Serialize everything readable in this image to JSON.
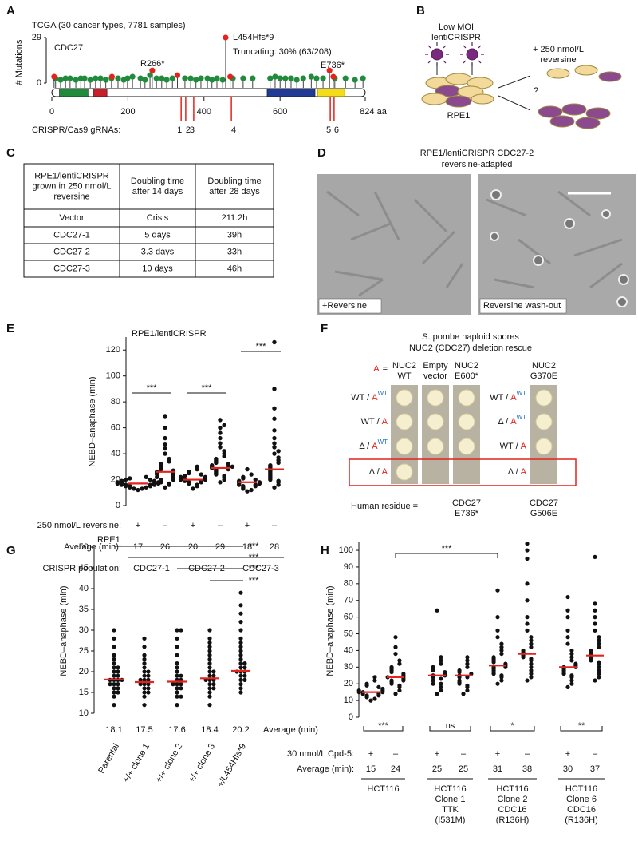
{
  "panels": {
    "A": {
      "letter": "A",
      "title": "TCGA (30 cancer types, 7781 samples)",
      "gene": "CDC27",
      "y_label": "# Mutations",
      "ylim": [
        0,
        29
      ],
      "yticks": [
        0,
        29
      ],
      "xlim": [
        0,
        824
      ],
      "xticks": [
        0,
        200,
        400,
        600,
        {
          "value": 824,
          "label": "824 aa"
        }
      ],
      "series": [
        {
          "color": "#1f8b3b",
          "x": [
            10,
            23,
            36,
            48,
            63,
            76,
            86,
            101,
            115,
            128,
            142,
            157,
            174,
            189,
            199,
            212,
            233,
            245,
            258,
            275,
            289,
            302,
            317,
            350,
            365,
            379,
            392,
            409,
            421,
            434,
            449,
            476,
            503,
            528,
            574,
            587,
            600,
            614,
            629,
            644,
            661,
            682,
            696,
            713,
            744,
            772,
            797,
            818
          ],
          "values": [
            3,
            2,
            3,
            3,
            2,
            3,
            3,
            2,
            3,
            3,
            2,
            3,
            3,
            2,
            3,
            4,
            3,
            2,
            5,
            3,
            3,
            2,
            3,
            3,
            3,
            2,
            3,
            3,
            2,
            3,
            2,
            3,
            3,
            3,
            3,
            4,
            3,
            3,
            3,
            2,
            3,
            4,
            3,
            3,
            3,
            3,
            2,
            3
          ]
        },
        {
          "color": "#e3231c",
          "x": [
            6,
            158,
            264,
            330,
            457,
            469,
            730,
            740
          ],
          "values": [
            4,
            4,
            8,
            5,
            29,
            4,
            8,
            4
          ]
        }
      ],
      "domains": [
        {
          "color": "#1f8b3b",
          "start": 20,
          "end": 95
        },
        {
          "color": "#c8202a",
          "start": 110,
          "end": 145
        },
        {
          "color": "#1f3b96",
          "start": 566,
          "end": 692
        },
        {
          "color": "#f5dc1a",
          "start": 698,
          "end": 770
        }
      ],
      "annotations": [
        "R266*",
        "L454Hfs*9",
        "Truncating: 30% (63/208)",
        "E736*"
      ],
      "grna_label": "CRISPR/Cas9 gRNAs:",
      "grna_ids": [
        1,
        2,
        3,
        4,
        5,
        6
      ],
      "grna_x": [
        340,
        352,
        373,
        472,
        732,
        742
      ]
    },
    "B": {
      "letter": "B",
      "virus_label": [
        "Low MOI",
        "lentiCRISPR"
      ],
      "treatment": [
        "+ 250 nmol/L",
        "reversine"
      ],
      "question": "?",
      "cell_line": "RPE1"
    },
    "C": {
      "letter": "C",
      "table": {
        "header": [
          [
            "RPE1/lentiCRISPR",
            "grown in 250 nmol/L",
            "reversine"
          ],
          [
            "Doubling time",
            "after 14 days"
          ],
          [
            "Doubling time",
            "after 28 days"
          ]
        ],
        "rows": [
          [
            "Vector",
            "Crisis",
            "211.2h"
          ],
          [
            "CDC27-1",
            "5 days",
            "39h"
          ],
          [
            "CDC27-2",
            "3.3 days",
            "33h"
          ],
          [
            "CDC27-3",
            "10 days",
            "46h"
          ]
        ]
      }
    },
    "D": {
      "letter": "D",
      "title": [
        "RPE1/lentiCRISPR CDC27-2",
        "reversine-adapted"
      ],
      "images": [
        "+Reversine",
        "Reversine wash-out"
      ]
    },
    "E": {
      "letter": "E",
      "title": "RPE1/lentiCRISPR",
      "y_label": "NEBD–anaphase (min)",
      "ylim": [
        0,
        130
      ],
      "yticks": [
        0,
        20,
        40,
        60,
        80,
        100,
        120
      ],
      "groups": [
        [
          12,
          13,
          13,
          14,
          14,
          15,
          15,
          15,
          16,
          16,
          16,
          16,
          17,
          17,
          17,
          17,
          18,
          18,
          18,
          19,
          19,
          20,
          20,
          21,
          22
        ],
        [
          14,
          16,
          17,
          18,
          19,
          20,
          20,
          21,
          22,
          22,
          23,
          24,
          24,
          25,
          25,
          26,
          27,
          28,
          29,
          30,
          31,
          32,
          34,
          36,
          40,
          44,
          47,
          52,
          60,
          69
        ],
        [
          13,
          15,
          16,
          17,
          18,
          18,
          19,
          19,
          20,
          20,
          20,
          21,
          21,
          22,
          22,
          23,
          24,
          25,
          26,
          28,
          30
        ],
        [
          18,
          20,
          22,
          23,
          24,
          25,
          26,
          27,
          28,
          28,
          29,
          29,
          30,
          30,
          31,
          32,
          33,
          34,
          35,
          36,
          38,
          40,
          42,
          45,
          48,
          52,
          56,
          60,
          62,
          66
        ],
        [
          11,
          12,
          13,
          14,
          15,
          15,
          16,
          16,
          17,
          17,
          18,
          18,
          19,
          20,
          21,
          22,
          24,
          28
        ],
        [
          14,
          16,
          18,
          19,
          20,
          21,
          22,
          23,
          24,
          25,
          26,
          27,
          28,
          29,
          30,
          31,
          33,
          35,
          37,
          40,
          42,
          45,
          48,
          52,
          58,
          67,
          75,
          90,
          126
        ]
      ],
      "treatment_label": "250 nmol/L reversine:",
      "treatment": [
        "+",
        "–",
        "+",
        "–",
        "+",
        "–"
      ],
      "average_label": "Average (min):",
      "averages": [
        17,
        26,
        20,
        29,
        18,
        28
      ],
      "population_label": "CRISPR population:",
      "populations": [
        "CDC27-1",
        "CDC27-2",
        "CDC27-3"
      ],
      "significance": [
        "***",
        "***",
        "***"
      ]
    },
    "F": {
      "letter": "F",
      "title": [
        "S. pombe haploid spores",
        "NUC2 (CDC27) deletion rescue"
      ],
      "a_label": "A",
      "equals": "=",
      "columns": [
        {
          "header": [
            "NUC2",
            "WT"
          ],
          "growth": [
            true,
            true,
            true,
            true
          ]
        },
        {
          "header": [
            "Empty",
            "vector"
          ],
          "growth": [
            true,
            true,
            true,
            false
          ]
        },
        {
          "header": [
            "NUC2",
            "E600*"
          ],
          "growth": [
            true,
            true,
            true,
            false
          ]
        }
      ],
      "rows": [
        {
          "pre": "WT /",
          "a": "A",
          "sup": "WT"
        },
        {
          "pre": "WT /",
          "a": "A"
        },
        {
          "pre": "Δ /",
          "a": "A",
          "sup": "WT"
        },
        {
          "pre": "Δ /",
          "a": "A"
        }
      ],
      "column4": {
        "header": [
          "NUC2",
          "G370E"
        ],
        "growth": [
          true,
          true,
          true,
          false
        ]
      },
      "rows4": [
        {
          "pre": "WT /",
          "a": "A",
          "sup": "WT"
        },
        {
          "pre": "Δ /",
          "a": "A",
          "sup": "WT"
        },
        {
          "pre": "WT /",
          "a": "A"
        },
        {
          "pre": "Δ /",
          "a": "A"
        }
      ],
      "human_label": "Human residue =",
      "human": [
        [
          "CDC27",
          "E736*"
        ],
        [
          "CDC27",
          "G506E"
        ]
      ]
    },
    "G": {
      "letter": "G",
      "title": "RPE1",
      "y_label": "NEBD–anaphase (min)",
      "ylim": [
        10,
        50
      ],
      "yticks": [
        10,
        15,
        20,
        25,
        30,
        35,
        40,
        45,
        50
      ],
      "groups": [
        [
          12,
          14,
          15,
          15,
          16,
          16,
          17,
          17,
          17,
          18,
          18,
          18,
          18,
          19,
          19,
          20,
          20,
          21,
          21,
          22,
          23,
          24,
          26,
          28,
          30
        ],
        [
          12,
          14,
          15,
          15,
          16,
          16,
          17,
          17,
          17,
          18,
          18,
          18,
          19,
          19,
          20,
          20,
          21,
          22,
          23,
          24,
          26,
          28
        ],
        [
          12,
          14,
          14,
          15,
          16,
          16,
          17,
          17,
          17,
          18,
          18,
          19,
          19,
          20,
          21,
          22,
          24,
          26,
          28,
          30,
          30
        ],
        [
          12,
          14,
          15,
          16,
          16,
          17,
          17,
          18,
          18,
          18,
          19,
          19,
          20,
          20,
          21,
          22,
          23,
          24,
          25,
          26,
          27,
          28,
          30
        ],
        [
          15,
          16,
          17,
          18,
          18,
          19,
          19,
          20,
          20,
          20,
          21,
          21,
          22,
          22,
          23,
          24,
          25,
          26,
          27,
          28,
          30,
          32,
          34,
          36,
          39
        ]
      ],
      "categories": [
        "Parental",
        "+/+ clone 1",
        "+/+ clone 2",
        "+/+ clone 3",
        "+/L454Hfs*9"
      ],
      "averages": [
        18.1,
        17.5,
        17.6,
        18.4,
        20.2
      ],
      "average_label": "Average (min)",
      "significance": [
        "***",
        "***",
        "***",
        "***"
      ]
    },
    "H": {
      "letter": "H",
      "y_label": "NEBD–anaphase (min)",
      "ylim": [
        0,
        105
      ],
      "yticks": [
        0,
        10,
        20,
        30,
        40,
        50,
        60,
        70,
        80,
        90,
        100
      ],
      "groups": [
        [
          10,
          11,
          12,
          13,
          13,
          14,
          14,
          15,
          15,
          15,
          16,
          16,
          17,
          18,
          19,
          20,
          22,
          24
        ],
        [
          14,
          16,
          18,
          19,
          20,
          21,
          22,
          22,
          23,
          24,
          24,
          25,
          26,
          27,
          28,
          29,
          30,
          32,
          34,
          38,
          42,
          48
        ],
        [
          14,
          16,
          18,
          20,
          20,
          22,
          23,
          24,
          25,
          25,
          26,
          27,
          28,
          29,
          30,
          32,
          34,
          36,
          64
        ],
        [
          14,
          16,
          18,
          19,
          20,
          21,
          22,
          24,
          24,
          25,
          26,
          27,
          28,
          30,
          32,
          34,
          36
        ],
        [
          20,
          22,
          24,
          25,
          26,
          27,
          28,
          29,
          30,
          30,
          31,
          32,
          33,
          34,
          35,
          36,
          38,
          40,
          42,
          44,
          48,
          52,
          60,
          76
        ],
        [
          22,
          24,
          26,
          28,
          30,
          32,
          34,
          35,
          36,
          37,
          38,
          39,
          40,
          42,
          44,
          46,
          48,
          52,
          56,
          60,
          70,
          80,
          95,
          100,
          104
        ],
        [
          18,
          20,
          22,
          24,
          25,
          26,
          27,
          28,
          29,
          30,
          30,
          31,
          32,
          34,
          36,
          38,
          40,
          44,
          48,
          52,
          60,
          64,
          72
        ],
        [
          22,
          24,
          26,
          28,
          30,
          32,
          33,
          34,
          35,
          36,
          37,
          38,
          39,
          40,
          42,
          44,
          46,
          48,
          52,
          56,
          60,
          64,
          68,
          96
        ]
      ],
      "treatment_label": "30 nmol/L Cpd-5:",
      "treatment": [
        "+",
        "–",
        "+",
        "–",
        "+",
        "–",
        "+",
        "–"
      ],
      "average_label": "Average (min):",
      "averages": [
        15,
        24,
        25,
        25,
        31,
        38,
        30,
        37
      ],
      "significance": [
        "***",
        "ns",
        "*",
        "**"
      ],
      "top_significance": "***",
      "lines": [
        [
          "HCT116"
        ],
        [
          "HCT116",
          "Clone 1",
          "TTK",
          "(I531M)"
        ],
        [
          "HCT116",
          "Clone 2",
          "CDC16",
          "(R136H)"
        ],
        [
          "HCT116",
          "Clone 6",
          "CDC16",
          "(R136H)"
        ]
      ]
    }
  }
}
